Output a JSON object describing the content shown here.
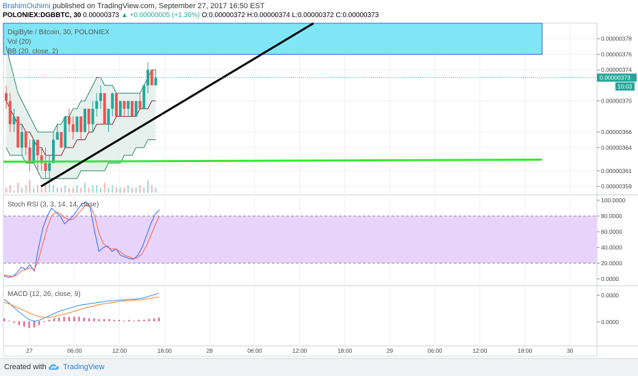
{
  "header": {
    "author": "BrahimOuhimi",
    "published_text": "published on TradingView.com, September 27, 2017 16:50 EST",
    "symbol": "POLONIEX:DGBBTC, 30",
    "last": "0.00000373",
    "change": "+0.00000005 (+1.36%)",
    "o_label": "O:",
    "o_value": "0.00000372",
    "h_label": "H:",
    "h_value": "0.00000374",
    "l_label": "L:",
    "l_value": "0.00000372",
    "c_label": "C:",
    "c_value": "0.00000373"
  },
  "footer": {
    "created": "Created with",
    "brand": "TradingView"
  },
  "colors": {
    "up": "#26a69a",
    "down": "#ef5350",
    "bb_fill": "#e0ede9",
    "bb_band": "#26846b",
    "bb_basis": "#8b1c2a",
    "zone": "#80e6f7",
    "green_line": "#33e833",
    "rsi_bg": "#e8d4fb",
    "rsi_k": "#2962ff",
    "rsi_d": "#ff5a3c",
    "macd": "#2b8ce6",
    "signal": "#f57c20",
    "hist": "#e91e63",
    "last_tag": "#26a69a"
  },
  "chart_data": [
    {
      "type": "candlestick",
      "title": "DigiByte / Bitcoin, 30, POLONIEX",
      "legend": [
        "Vol (20)",
        "BB (20, close, 2)"
      ],
      "ylim": [
        3.58e-06,
        3.8e-06
      ],
      "y_ticks": [
        "0.00000378",
        "0.00000376",
        "0.00000374",
        "0.00000370",
        "0.00000366",
        "0.00000364",
        "0.00000361",
        "0.00000359"
      ],
      "last_price_label": "0.00000373",
      "countdown_label": "10:03",
      "x_labels": [
        "27",
        "06:00",
        "12:00",
        "18:00",
        "28",
        "06:00",
        "12:00",
        "18:00",
        "29",
        "06:00",
        "12:00",
        "18:00",
        "30"
      ],
      "candles": [
        [
          3.71e-06,
          3.72e-06,
          3.69e-06,
          3.7e-06
        ],
        [
          3.7e-06,
          3.71e-06,
          3.66e-06,
          3.67e-06
        ],
        [
          3.67e-06,
          3.69e-06,
          3.66e-06,
          3.68e-06
        ],
        [
          3.68e-06,
          3.68e-06,
          3.64e-06,
          3.64e-06
        ],
        [
          3.64e-06,
          3.67e-06,
          3.63e-06,
          3.66e-06
        ],
        [
          3.66e-06,
          3.66e-06,
          3.63e-06,
          3.64e-06
        ],
        [
          3.64e-06,
          3.65e-06,
          3.61e-06,
          3.62e-06
        ],
        [
          3.62e-06,
          3.65e-06,
          3.62e-06,
          3.65e-06
        ],
        [
          3.65e-06,
          3.65e-06,
          3.61e-06,
          3.63e-06
        ],
        [
          3.63e-06,
          3.64e-06,
          3.61e-06,
          3.62e-06
        ],
        [
          3.62e-06,
          3.64e-06,
          3.6e-06,
          3.61e-06
        ],
        [
          3.61e-06,
          3.63e-06,
          3.6e-06,
          3.62e-06
        ],
        [
          3.62e-06,
          3.66e-06,
          3.62e-06,
          3.65e-06
        ],
        [
          3.65e-06,
          3.67e-06,
          3.65e-06,
          3.66e-06
        ],
        [
          3.66e-06,
          3.66e-06,
          3.64e-06,
          3.64e-06
        ],
        [
          3.64e-06,
          3.68e-06,
          3.64e-06,
          3.68e-06
        ],
        [
          3.68e-06,
          3.69e-06,
          3.66e-06,
          3.67e-06
        ],
        [
          3.67e-06,
          3.68e-06,
          3.65e-06,
          3.66e-06
        ],
        [
          3.66e-06,
          3.68e-06,
          3.66e-06,
          3.68e-06
        ],
        [
          3.68e-06,
          3.68e-06,
          3.65e-06,
          3.66e-06
        ],
        [
          3.66e-06,
          3.69e-06,
          3.66e-06,
          3.69e-06
        ],
        [
          3.69e-06,
          3.69e-06,
          3.66e-06,
          3.67e-06
        ],
        [
          3.67e-06,
          3.7e-06,
          3.66e-06,
          3.69e-06
        ],
        [
          3.69e-06,
          3.71e-06,
          3.68e-06,
          3.7e-06
        ],
        [
          3.7e-06,
          3.72e-06,
          3.69e-06,
          3.71e-06
        ],
        [
          3.71e-06,
          3.71e-06,
          3.67e-06,
          3.67e-06
        ],
        [
          3.67e-06,
          3.69e-06,
          3.66e-06,
          3.69e-06
        ],
        [
          3.69e-06,
          3.71e-06,
          3.68e-06,
          3.71e-06
        ],
        [
          3.71e-06,
          3.71e-06,
          3.68e-06,
          3.68e-06
        ],
        [
          3.68e-06,
          3.7e-06,
          3.68e-06,
          3.7e-06
        ],
        [
          3.7e-06,
          3.7e-06,
          3.68e-06,
          3.69e-06
        ],
        [
          3.69e-06,
          3.7e-06,
          3.68e-06,
          3.7e-06
        ],
        [
          3.7e-06,
          3.7e-06,
          3.68e-06,
          3.68e-06
        ],
        [
          3.68e-06,
          3.7e-06,
          3.68e-06,
          3.7e-06
        ],
        [
          3.7e-06,
          3.71e-06,
          3.69e-06,
          3.69e-06
        ],
        [
          3.69e-06,
          3.72e-06,
          3.69e-06,
          3.72e-06
        ],
        [
          3.72e-06,
          3.75e-06,
          3.71e-06,
          3.74e-06
        ],
        [
          3.74e-06,
          3.74e-06,
          3.72e-06,
          3.72e-06
        ],
        [
          3.72e-06,
          3.74e-06,
          3.72e-06,
          3.73e-06
        ]
      ],
      "bb_upper": [
        3.77e-06,
        3.75e-06,
        3.73e-06,
        3.71e-06,
        3.7e-06,
        3.69e-06,
        3.68e-06,
        3.67e-06,
        3.66e-06,
        3.66e-06,
        3.66e-06,
        3.66e-06,
        3.66e-06,
        3.67e-06,
        3.67e-06,
        3.68e-06,
        3.68e-06,
        3.69e-06,
        3.69e-06,
        3.7e-06,
        3.7e-06,
        3.71e-06,
        3.72e-06,
        3.73e-06,
        3.73e-06,
        3.72e-06,
        3.72e-06,
        3.72e-06,
        3.71e-06,
        3.71e-06,
        3.71e-06,
        3.71e-06,
        3.71e-06,
        3.71e-06,
        3.71e-06,
        3.72e-06,
        3.73e-06,
        3.74e-06,
        3.74e-06
      ],
      "bb_basis": [
        3.7e-06,
        3.69e-06,
        3.68e-06,
        3.67e-06,
        3.67e-06,
        3.66e-06,
        3.66e-06,
        3.65e-06,
        3.64e-06,
        3.64e-06,
        3.63e-06,
        3.63e-06,
        3.63e-06,
        3.63e-06,
        3.63e-06,
        3.64e-06,
        3.64e-06,
        3.64e-06,
        3.65e-06,
        3.65e-06,
        3.65e-06,
        3.66e-06,
        3.66e-06,
        3.67e-06,
        3.67e-06,
        3.67e-06,
        3.67e-06,
        3.67e-06,
        3.68e-06,
        3.68e-06,
        3.68e-06,
        3.68e-06,
        3.68e-06,
        3.68e-06,
        3.69e-06,
        3.69e-06,
        3.69e-06,
        3.7e-06,
        3.7e-06
      ],
      "bb_lower": [
        3.64e-06,
        3.63e-06,
        3.63e-06,
        3.63e-06,
        3.63e-06,
        3.62e-06,
        3.62e-06,
        3.62e-06,
        3.61e-06,
        3.6e-06,
        3.6e-06,
        3.6e-06,
        3.6e-06,
        3.6e-06,
        3.6e-06,
        3.6e-06,
        3.6e-06,
        3.6e-06,
        3.6e-06,
        3.61e-06,
        3.61e-06,
        3.61e-06,
        3.61e-06,
        3.61e-06,
        3.61e-06,
        3.61e-06,
        3.62e-06,
        3.62e-06,
        3.62e-06,
        3.62e-06,
        3.63e-06,
        3.63e-06,
        3.63e-06,
        3.64e-06,
        3.64e-06,
        3.64e-06,
        3.65e-06,
        3.65e-06,
        3.65e-06
      ],
      "volume": [
        2,
        3,
        1,
        4,
        2,
        3,
        5,
        2,
        3,
        2,
        4,
        6,
        3,
        2,
        2,
        3,
        2,
        2,
        3,
        2,
        4,
        2,
        3,
        3,
        2,
        4,
        2,
        3,
        2,
        2,
        2,
        3,
        2,
        2,
        3,
        2,
        5,
        3,
        2
      ],
      "resistance_zone": [
        3.76e-06,
        3.8e-06
      ],
      "support_line": [
        3.62e-06,
        3.62e-06
      ],
      "trend_line": [
        3.59e-06,
        3.8e-06
      ]
    },
    {
      "type": "line",
      "title": "Stoch RSI (3, 3, 14, 14, close)",
      "ylim": [
        0,
        100
      ],
      "y_ticks": [
        "100.0000",
        "80.0000",
        "60.0000",
        "40.0000",
        "20.0000",
        "0.0000"
      ],
      "bands": [
        20,
        80
      ],
      "series": [
        {
          "values": [
            4,
            2,
            3,
            8,
            15,
            12,
            18,
            10,
            40,
            65,
            80,
            90,
            85,
            80,
            70,
            75,
            80,
            88,
            95,
            98,
            90,
            60,
            35,
            40,
            42,
            35,
            38,
            30,
            28,
            26,
            25,
            30,
            40,
            55,
            70,
            82,
            88
          ]
        },
        {
          "values": [
            5,
            4,
            3,
            5,
            10,
            12,
            14,
            12,
            25,
            45,
            65,
            80,
            85,
            83,
            78,
            75,
            76,
            82,
            88,
            94,
            93,
            80,
            58,
            45,
            40,
            38,
            38,
            34,
            30,
            28,
            26,
            27,
            32,
            42,
            55,
            68,
            80
          ]
        }
      ]
    },
    {
      "type": "line",
      "title": "MACD (12, 26, close, 9)",
      "y_ticks": [
        "0.0000",
        "0.0000"
      ],
      "series": [
        {
          "values": [
            0.2,
            -0.3,
            -0.9,
            -1.5,
            -2.0,
            -2.5,
            -2.7,
            -2.6,
            -2.3,
            -2.0,
            -1.7,
            -1.4,
            -1.2,
            -1.0,
            -0.8,
            -0.6,
            -0.5,
            -0.4,
            -0.3,
            -0.2,
            -0.1,
            0.0,
            0.0,
            0.1,
            0.1,
            0.2,
            0.2,
            0.3,
            0.4,
            0.6,
            0.8,
            1.0
          ]
        },
        {
          "values": [
            -0.2,
            -0.4,
            -0.7,
            -1.0,
            -1.3,
            -1.6,
            -1.9,
            -2.1,
            -2.2,
            -2.2,
            -2.1,
            -1.9,
            -1.8,
            -1.6,
            -1.4,
            -1.2,
            -1.0,
            -0.8,
            -0.7,
            -0.5,
            -0.4,
            -0.3,
            -0.2,
            -0.1,
            0.0,
            0.0,
            0.1,
            0.1,
            0.2,
            0.3,
            0.4,
            0.5
          ]
        }
      ],
      "histogram": [
        0.4,
        0.1,
        -0.2,
        -0.5,
        -0.7,
        -0.9,
        -0.8,
        -0.5,
        -0.1,
        0.2,
        0.4,
        0.5,
        0.6,
        0.6,
        0.6,
        0.6,
        0.5,
        0.4,
        0.4,
        0.3,
        0.3,
        0.3,
        0.2,
        0.2,
        0.1,
        0.2,
        0.1,
        0.2,
        0.2,
        0.3,
        0.4,
        0.5
      ]
    }
  ]
}
